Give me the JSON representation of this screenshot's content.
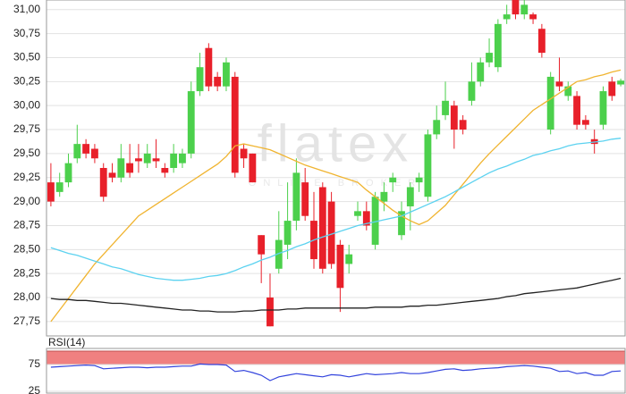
{
  "chart_data": {
    "type": "candlestick",
    "watermark": "flatex",
    "watermark_sub": "ONLINE BROKER",
    "up_color": "#4cd04c",
    "down_color": "#e8202a",
    "grid": true,
    "ylim": [
      27.6,
      31.1
    ],
    "yticks": [
      {
        "value": 31,
        "label": "31,00"
      },
      {
        "value": 30.75,
        "label": "30,75"
      },
      {
        "value": 30.5,
        "label": "30,50"
      },
      {
        "value": 30.25,
        "label": "30,25"
      },
      {
        "value": 30,
        "label": "30,00"
      },
      {
        "value": 29.75,
        "label": "29,75"
      },
      {
        "value": 29.5,
        "label": "29,50"
      },
      {
        "value": 29.25,
        "label": "29,25"
      },
      {
        "value": 29,
        "label": "29,00"
      },
      {
        "value": 28.75,
        "label": "28,75"
      },
      {
        "value": 28.5,
        "label": "28,50"
      },
      {
        "value": 28.25,
        "label": "28,25"
      },
      {
        "value": 28,
        "label": "28,00"
      },
      {
        "value": 27.75,
        "label": "27,75"
      }
    ],
    "open": [
      29.2,
      29.1,
      29.2,
      29.45,
      29.6,
      29.55,
      29.35,
      29.3,
      29.25,
      29.4,
      29.45,
      29.4,
      29.45,
      29.35,
      29.35,
      29.4,
      29.5,
      30.15,
      30.6,
      30.3,
      30.2,
      30.3,
      29.55,
      29.5,
      28.65,
      28.0,
      28.3,
      28.55,
      28.8,
      29.2,
      28.8,
      29.15,
      29.0,
      28.55,
      28.35,
      28.85,
      28.9,
      28.55,
      29.0,
      29.2,
      28.65,
      28.95,
      29.2,
      29.05,
      29.7,
      29.9,
      30.0,
      29.85,
      30.05,
      30.25,
      30.45,
      30.4,
      30.9,
      31.1,
      30.95,
      30.95,
      30.8,
      29.75,
      30.25,
      30.1,
      30.1,
      29.85,
      29.65,
      29.8,
      30.25,
      30.22
    ],
    "close": [
      29.0,
      29.2,
      29.4,
      29.6,
      29.5,
      29.45,
      29.05,
      29.25,
      29.45,
      29.3,
      29.42,
      29.5,
      29.42,
      29.3,
      29.5,
      29.5,
      30.15,
      30.4,
      30.2,
      30.2,
      30.45,
      29.3,
      29.45,
      29.2,
      28.45,
      27.7,
      28.6,
      28.8,
      29.3,
      28.85,
      28.4,
      28.3,
      28.35,
      28.1,
      28.45,
      28.9,
      28.75,
      29.05,
      29.1,
      29.25,
      28.9,
      29.15,
      29.25,
      29.7,
      29.85,
      30.05,
      29.75,
      29.75,
      30.25,
      30.45,
      30.55,
      30.85,
      30.95,
      30.95,
      31.05,
      30.9,
      30.55,
      30.3,
      30.2,
      30.2,
      29.8,
      29.8,
      29.6,
      30.15,
      30.1,
      30.26
    ],
    "high": [
      29.4,
      29.3,
      29.5,
      29.8,
      29.65,
      29.6,
      29.4,
      29.4,
      29.6,
      29.6,
      29.6,
      29.6,
      29.65,
      29.4,
      29.6,
      29.55,
      30.25,
      30.55,
      30.65,
      30.35,
      30.5,
      30.35,
      29.6,
      29.5,
      28.65,
      28.25,
      28.9,
      29.2,
      29.45,
      29.35,
      29.1,
      29.2,
      29.1,
      28.6,
      28.55,
      29.0,
      29.0,
      29.1,
      29.2,
      29.3,
      29.0,
      29.2,
      29.3,
      29.75,
      30.0,
      30.25,
      30.05,
      29.9,
      30.45,
      30.5,
      30.7,
      30.9,
      31.05,
      31.1,
      31.1,
      30.97,
      30.85,
      30.35,
      30.5,
      30.25,
      30.15,
      29.9,
      29.75,
      30.2,
      30.3,
      30.28
    ],
    "low": [
      28.95,
      29.05,
      29.15,
      29.4,
      29.45,
      29.4,
      29.0,
      29.2,
      29.2,
      29.25,
      29.3,
      29.35,
      29.35,
      29.25,
      29.3,
      29.35,
      29.45,
      30.1,
      30.15,
      30.15,
      30.15,
      29.25,
      29.35,
      29.2,
      28.15,
      27.7,
      28.25,
      28.4,
      28.7,
      28.8,
      28.3,
      28.25,
      28.3,
      27.85,
      28.25,
      28.8,
      28.7,
      28.5,
      28.9,
      29.1,
      28.6,
      28.7,
      29.1,
      29.0,
      29.65,
      29.85,
      29.55,
      29.7,
      30.0,
      30.2,
      30.4,
      30.35,
      30.85,
      30.9,
      30.9,
      30.85,
      30.5,
      29.7,
      30.15,
      30.05,
      29.75,
      29.75,
      29.5,
      29.75,
      30.05,
      30.2
    ],
    "series": [
      {
        "color": "#f0b430",
        "values": [
          27.75,
          27.87,
          27.99,
          28.11,
          28.23,
          28.35,
          28.45,
          28.55,
          28.65,
          28.75,
          28.85,
          28.91,
          28.97,
          29.03,
          29.09,
          29.15,
          29.21,
          29.27,
          29.33,
          29.39,
          29.47,
          29.58,
          29.6,
          29.58,
          29.56,
          29.54,
          29.5,
          29.46,
          29.42,
          29.38,
          29.35,
          29.32,
          29.29,
          29.26,
          29.23,
          29.2,
          29.12,
          29.05,
          28.98,
          28.91,
          28.85,
          28.8,
          28.76,
          28.8,
          28.88,
          28.96,
          29.07,
          29.18,
          29.29,
          29.4,
          29.5,
          29.59,
          29.68,
          29.77,
          29.86,
          29.95,
          30.01,
          30.07,
          30.13,
          30.19,
          30.25,
          30.27,
          30.3,
          30.32,
          30.35,
          30.37
        ]
      },
      {
        "color": "#5cd2f0",
        "values": [
          28.52,
          28.49,
          28.46,
          28.44,
          28.41,
          28.38,
          28.35,
          28.32,
          28.3,
          28.27,
          28.24,
          28.22,
          28.2,
          28.19,
          28.18,
          28.18,
          28.19,
          28.2,
          28.22,
          28.23,
          28.25,
          28.28,
          28.32,
          28.35,
          28.39,
          28.42,
          28.46,
          28.49,
          28.53,
          28.56,
          28.6,
          28.63,
          28.66,
          28.69,
          28.72,
          28.75,
          28.77,
          28.79,
          28.81,
          28.83,
          28.85,
          28.89,
          28.93,
          28.97,
          29.01,
          29.05,
          29.1,
          29.15,
          29.2,
          29.25,
          29.3,
          29.34,
          29.37,
          29.41,
          29.44,
          29.48,
          29.5,
          29.53,
          29.55,
          29.58,
          29.6,
          29.61,
          29.62,
          29.63,
          29.65,
          29.66
        ]
      },
      {
        "color": "#222222",
        "values": [
          27.99,
          27.98,
          27.98,
          27.97,
          27.97,
          27.96,
          27.95,
          27.94,
          27.94,
          27.93,
          27.92,
          27.91,
          27.9,
          27.89,
          27.88,
          27.87,
          27.87,
          27.86,
          27.86,
          27.85,
          27.85,
          27.85,
          27.86,
          27.86,
          27.87,
          27.87,
          27.87,
          27.88,
          27.88,
          27.89,
          27.89,
          27.89,
          27.89,
          27.89,
          27.89,
          27.89,
          27.89,
          27.9,
          27.9,
          27.9,
          27.9,
          27.91,
          27.91,
          27.92,
          27.92,
          27.93,
          27.94,
          27.95,
          27.96,
          27.97,
          27.98,
          27.99,
          28.01,
          28.02,
          28.04,
          28.05,
          28.06,
          28.07,
          28.08,
          28.09,
          28.1,
          28.12,
          28.14,
          28.16,
          28.18,
          28.2
        ]
      }
    ],
    "rsi": {
      "label": "RSI(14)",
      "color": "#3344dd",
      "high_band_color": "#f08080",
      "low_band_color": "#66cc66",
      "ylim": [
        20,
        100
      ],
      "yticks": [
        75,
        25
      ],
      "values": [
        70,
        71,
        72,
        73,
        74,
        73,
        67,
        68,
        69,
        70,
        70,
        69,
        70,
        70,
        71,
        72,
        72,
        76,
        75,
        75,
        74,
        62,
        64,
        60,
        55,
        45,
        52,
        55,
        58,
        56,
        54,
        52,
        56,
        55,
        52,
        55,
        58,
        56,
        57,
        58,
        60,
        58,
        58,
        60,
        63,
        66,
        67,
        64,
        65,
        67,
        68,
        69,
        71,
        72,
        73,
        72,
        70,
        68,
        62,
        63,
        58,
        60,
        55,
        55,
        62,
        63
      ]
    }
  }
}
